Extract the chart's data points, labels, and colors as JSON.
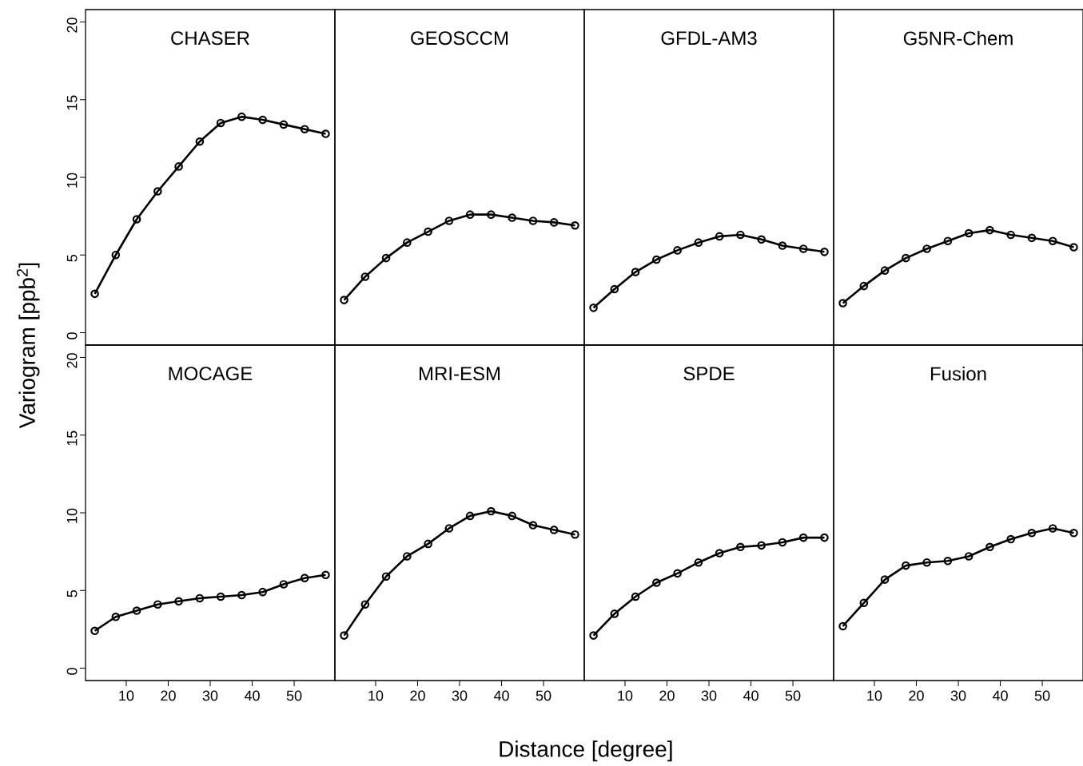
{
  "chart_data": [
    {
      "type": "line",
      "title": "CHASER",
      "ylabel": "Variogram [ppb$^{2}$]",
      "x": [
        2.5,
        7.5,
        12.5,
        17.5,
        22.5,
        27.5,
        32.5,
        37.5,
        42.5,
        47.5,
        52.5,
        57.5
      ],
      "values": [
        2.5,
        5.0,
        7.3,
        9.1,
        10.7,
        12.3,
        13.5,
        13.9,
        13.7,
        13.4,
        13.1,
        12.8
      ],
      "color": "#000000",
      "marker": "circle",
      "xlim": [
        0.3,
        59.7
      ],
      "ylim": [
        -0.8,
        20.8
      ],
      "xticks": [
        10,
        20,
        30,
        40,
        50
      ],
      "yticks": [
        0,
        5,
        10,
        15,
        20
      ],
      "tick_labels": "y"
    },
    {
      "type": "line",
      "title": "GEOSCCM",
      "x": [
        2.5,
        7.5,
        12.5,
        17.5,
        22.5,
        27.5,
        32.5,
        37.5,
        42.5,
        47.5,
        52.5,
        57.5
      ],
      "values": [
        2.1,
        3.6,
        4.8,
        5.8,
        6.5,
        7.2,
        7.6,
        7.6,
        7.4,
        7.2,
        7.1,
        6.9
      ],
      "color": "#000000",
      "marker": "circle",
      "xlim": [
        0.3,
        59.7
      ],
      "ylim": [
        -0.8,
        20.8
      ],
      "xticks": [
        10,
        20,
        30,
        40,
        50
      ],
      "yticks": [
        0,
        5,
        10,
        15,
        20
      ],
      "tick_labels": false
    },
    {
      "type": "line",
      "title": "GFDL-AM3",
      "x": [
        2.5,
        7.5,
        12.5,
        17.5,
        22.5,
        27.5,
        32.5,
        37.5,
        42.5,
        47.5,
        52.5,
        57.5
      ],
      "values": [
        1.6,
        2.8,
        3.9,
        4.7,
        5.3,
        5.8,
        6.2,
        6.3,
        6.0,
        5.6,
        5.4,
        5.2
      ],
      "color": "#000000",
      "marker": "circle",
      "xlim": [
        0.3,
        59.7
      ],
      "ylim": [
        -0.8,
        20.8
      ],
      "xticks": [
        10,
        20,
        30,
        40,
        50
      ],
      "yticks": [
        0,
        5,
        10,
        15,
        20
      ],
      "tick_labels": false
    },
    {
      "type": "line",
      "title": "G5NR-Chem",
      "x": [
        2.5,
        7.5,
        12.5,
        17.5,
        22.5,
        27.5,
        32.5,
        37.5,
        42.5,
        47.5,
        52.5,
        57.5
      ],
      "values": [
        1.9,
        3.0,
        4.0,
        4.8,
        5.4,
        5.9,
        6.4,
        6.6,
        6.3,
        6.1,
        5.9,
        5.5
      ],
      "color": "#000000",
      "marker": "circle",
      "xlim": [
        0.3,
        59.7
      ],
      "ylim": [
        -0.8,
        20.8
      ],
      "xticks": [
        10,
        20,
        30,
        40,
        50
      ],
      "yticks": [
        0,
        5,
        10,
        15,
        20
      ],
      "tick_labels": false
    },
    {
      "type": "line",
      "title": "MOCAGE",
      "x": [
        2.5,
        7.5,
        12.5,
        17.5,
        22.5,
        27.5,
        32.5,
        37.5,
        42.5,
        47.5,
        52.5,
        57.5
      ],
      "values": [
        2.4,
        3.3,
        3.7,
        4.1,
        4.3,
        4.5,
        4.6,
        4.7,
        4.9,
        5.4,
        5.8,
        6.0
      ],
      "color": "#000000",
      "marker": "circle",
      "xlim": [
        0.3,
        59.7
      ],
      "ylim": [
        -0.8,
        20.8
      ],
      "xticks": [
        10,
        20,
        30,
        40,
        50
      ],
      "yticks": [
        0,
        5,
        10,
        15,
        20
      ]
    },
    {
      "type": "line",
      "title": "MRI-ESM",
      "xlabel": "Distance [degree]",
      "x": [
        2.5,
        7.5,
        12.5,
        17.5,
        22.5,
        27.5,
        32.5,
        37.5,
        42.5,
        47.5,
        52.5,
        57.5
      ],
      "values": [
        2.1,
        4.1,
        5.9,
        7.2,
        8.0,
        9.0,
        9.8,
        10.1,
        9.8,
        9.2,
        8.9,
        8.6
      ],
      "color": "#000000",
      "marker": "circle",
      "xlim": [
        0.3,
        59.7
      ],
      "ylim": [
        -0.8,
        20.8
      ],
      "xticks": [
        10,
        20,
        30,
        40,
        50
      ],
      "yticks": [
        0,
        5,
        10,
        15,
        20
      ],
      "tick_labels": "x"
    },
    {
      "type": "line",
      "title": "SPDE",
      "x": [
        2.5,
        7.5,
        12.5,
        17.5,
        22.5,
        27.5,
        32.5,
        37.5,
        42.5,
        47.5,
        52.5,
        57.5
      ],
      "values": [
        2.1,
        3.5,
        4.6,
        5.5,
        6.1,
        6.8,
        7.4,
        7.8,
        7.9,
        8.1,
        8.4,
        8.4
      ],
      "color": "#000000",
      "marker": "circle",
      "xlim": [
        0.3,
        59.7
      ],
      "ylim": [
        -0.8,
        20.8
      ],
      "xticks": [
        10,
        20,
        30,
        40,
        50
      ],
      "yticks": [
        0,
        5,
        10,
        15,
        20
      ],
      "tick_labels": "x"
    },
    {
      "type": "line",
      "title": "Fusion",
      "x": [
        2.5,
        7.5,
        12.5,
        17.5,
        22.5,
        27.5,
        32.5,
        37.5,
        42.5,
        47.5,
        52.5,
        57.5
      ],
      "values": [
        2.7,
        4.2,
        5.7,
        6.6,
        6.8,
        6.9,
        7.2,
        7.8,
        8.3,
        8.7,
        9.0,
        8.7
      ],
      "color": "#000000",
      "marker": "circle",
      "xlim": [
        0.3,
        59.7
      ],
      "ylim": [
        -0.8,
        20.8
      ],
      "xticks": [
        10,
        20,
        30,
        40,
        50
      ],
      "yticks": [
        0,
        5,
        10,
        15,
        20
      ],
      "tick_labels": "x"
    }
  ]
}
